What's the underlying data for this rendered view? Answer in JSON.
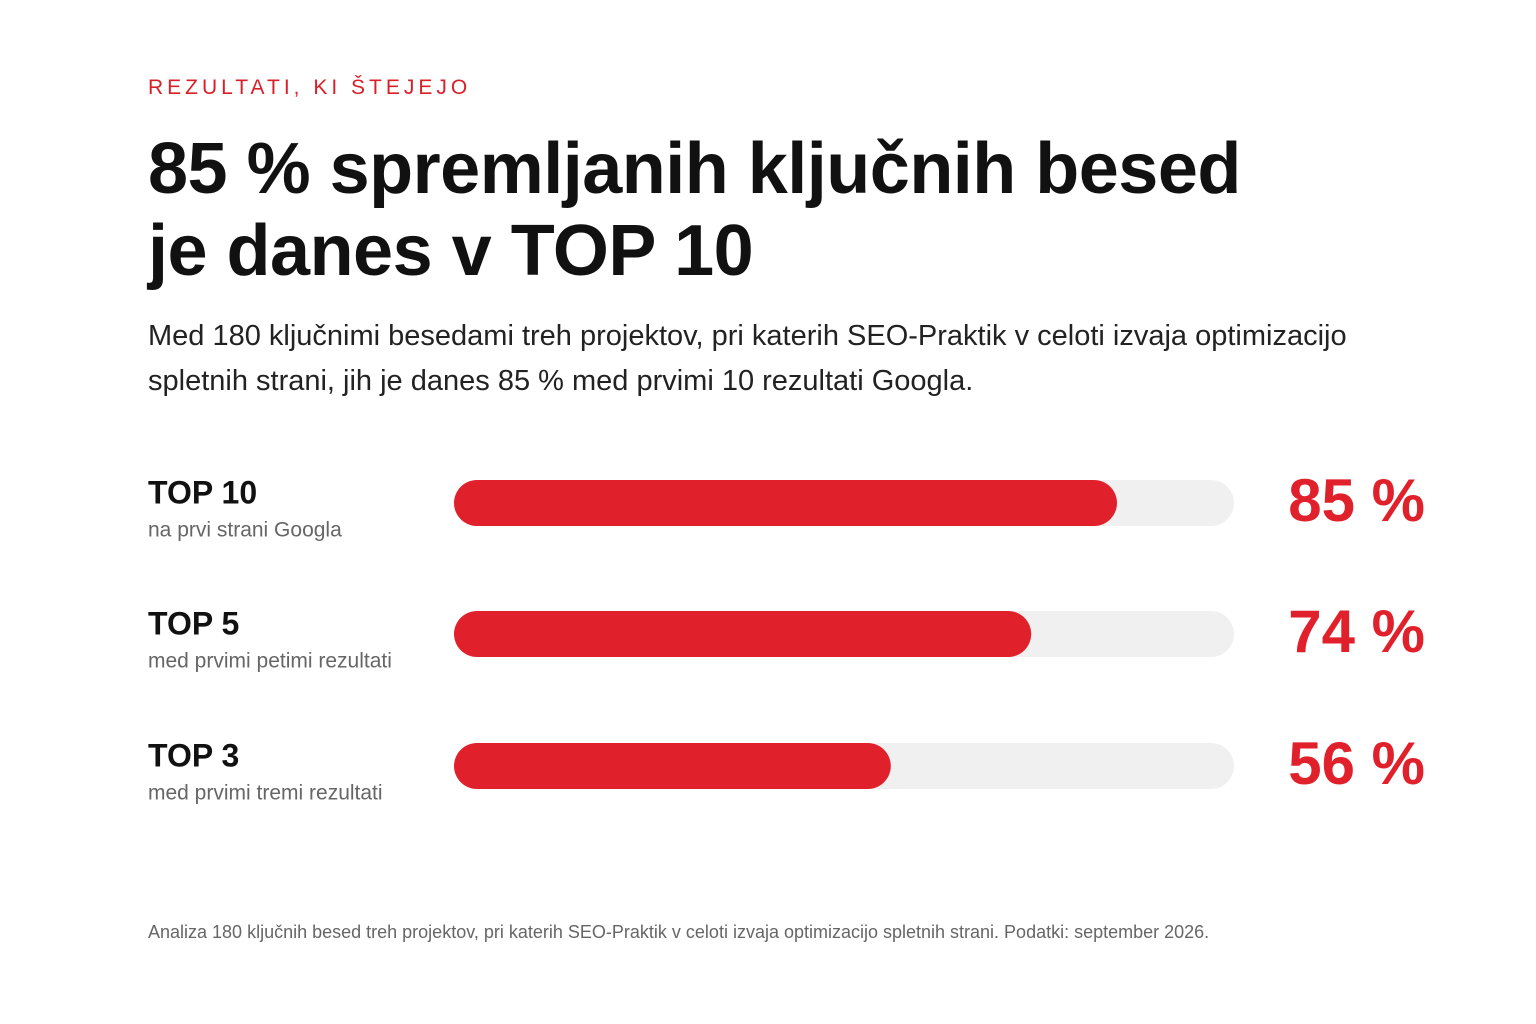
{
  "eyebrow": "REZULTATI, KI ŠTEJEJO",
  "chart_data": {
    "type": "hbar",
    "title": "85 % spremljanih ključnih besed je danes v TOP 10",
    "subtitle": "Med 180 ključnimi besedami treh projektov, pri katerih SEO-Praktik v celoti izvaja optimizacijo spletnih strani, jih je danes 85 % med prvimi 10 rezultati Googla.",
    "categories": [
      "TOP 10",
      "TOP 5",
      "TOP 3"
    ],
    "category_notes": [
      "na prvi strani Googla",
      "med prvimi petimi rezultati",
      "med prvimi tremi rezultati"
    ],
    "values": [
      85,
      74,
      56
    ],
    "value_labels": [
      "85 %",
      "74 %",
      "56 %"
    ],
    "xlim": [
      0,
      100
    ],
    "color": "#e0202a",
    "track_color": "#f0f0f0"
  },
  "footnote": "Analiza 180 ključnih besed treh projektov, pri katerih SEO-Praktik v celoti izvaja optimizacijo spletnih strani. Podatki: september 2026."
}
